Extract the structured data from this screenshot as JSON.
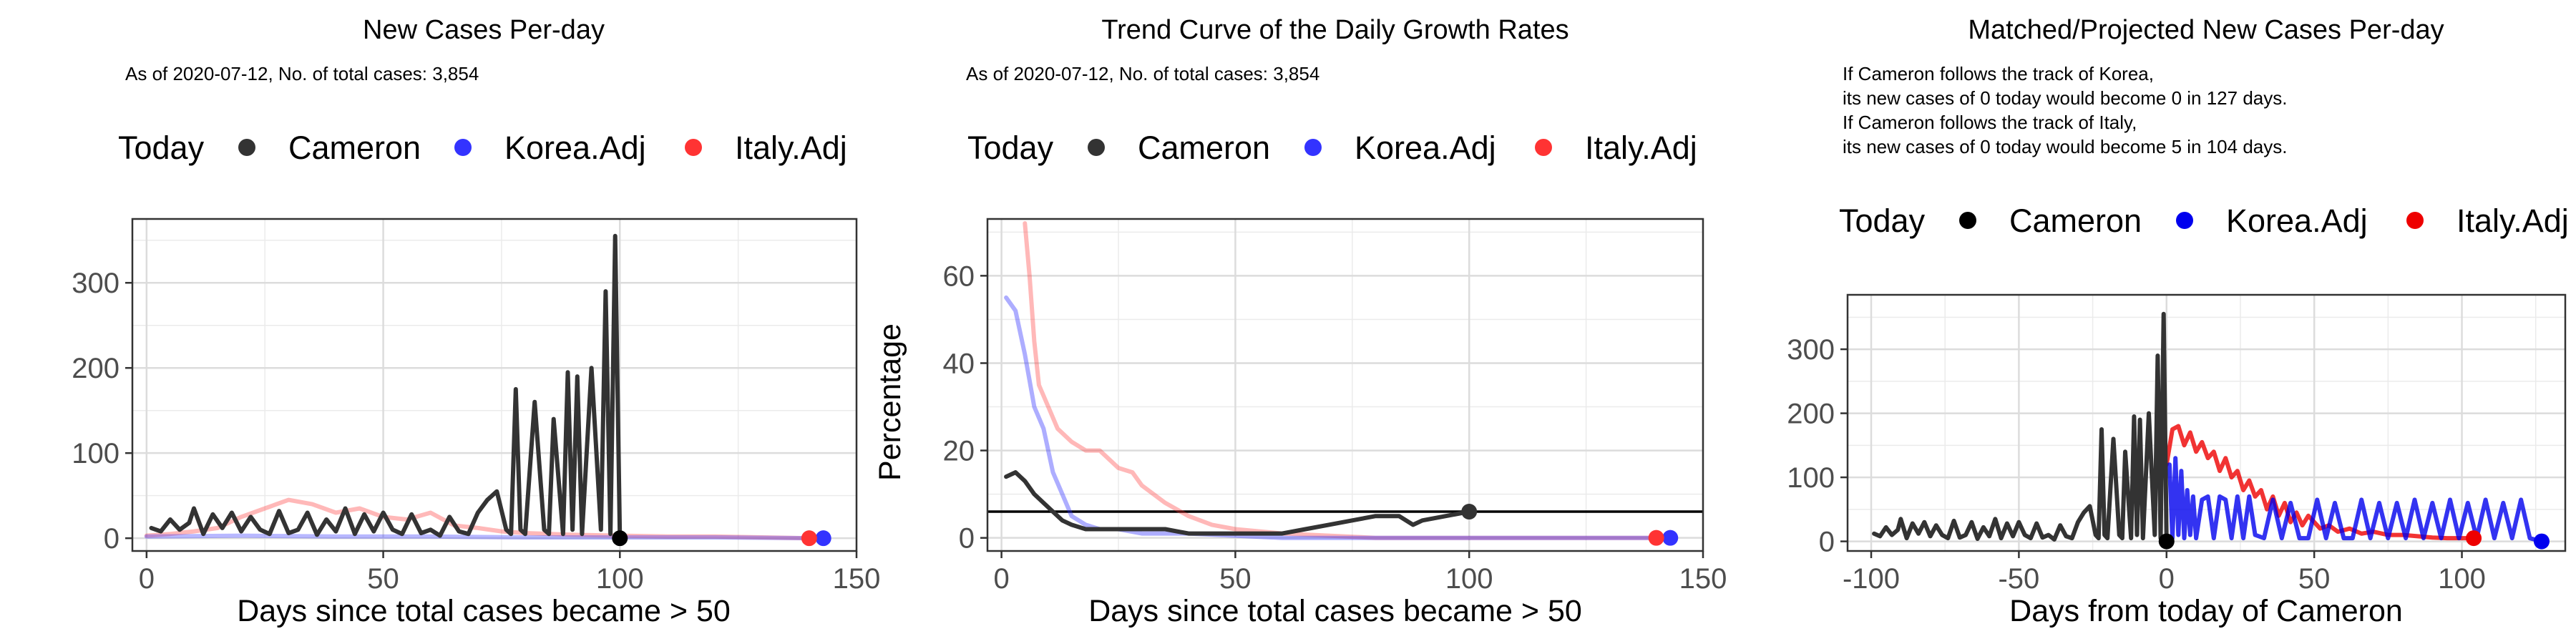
{
  "colors": {
    "Cameron": "#333333",
    "Korea.Adj": "#3333ff",
    "Italy.Adj": "#ff3333",
    "today_marker_black": "#000000",
    "projected_korea": "#0000ee",
    "projected_italy": "#ee0000"
  },
  "legend": {
    "title": "Today",
    "items": [
      "Cameron",
      "Korea.Adj",
      "Italy.Adj"
    ]
  },
  "panels": [
    {
      "title": "New Cases Per-day",
      "subtitle_lines": [
        "As of 2020-07-12, No. of total cases: 3,854"
      ]
    },
    {
      "title": "Trend Curve of the Daily Growth Rates",
      "subtitle_lines": [
        "As of 2020-07-12, No. of total cases: 3,854"
      ]
    },
    {
      "title": "Matched/Projected New Cases Per-day",
      "subtitle_lines": [
        "If Cameron follows the track of Korea,",
        "its new cases of 0 today would become 0 in 127 days.",
        "If Cameron follows the track of Italy,",
        "its new cases of 0 today would become 5 in 104 days."
      ]
    }
  ],
  "chart_data": [
    {
      "type": "line",
      "title": "New Cases Per-day",
      "xlabel": "Days since total cases became > 50",
      "ylabel": "",
      "xlim": [
        -3,
        150
      ],
      "ylim": [
        -15,
        375
      ],
      "xticks": [
        0,
        50,
        100,
        150
      ],
      "yticks": [
        0,
        100,
        200,
        300
      ],
      "grid": true,
      "legend_position": "top",
      "series": [
        {
          "name": "Cameron",
          "x": [
            1,
            3,
            5,
            7,
            9,
            10,
            12,
            14,
            16,
            18,
            20,
            22,
            24,
            26,
            28,
            30,
            32,
            34,
            36,
            38,
            40,
            42,
            44,
            46,
            48,
            50,
            52,
            54,
            56,
            58,
            60,
            62,
            64,
            66,
            68,
            70,
            72,
            74,
            76,
            77,
            78,
            79,
            80,
            82,
            84,
            85,
            86,
            88,
            89,
            90,
            91,
            92,
            94,
            96,
            97,
            98,
            99,
            100
          ],
          "y": [
            12,
            8,
            22,
            10,
            18,
            35,
            5,
            28,
            12,
            30,
            8,
            25,
            10,
            5,
            32,
            6,
            10,
            30,
            4,
            22,
            8,
            35,
            5,
            28,
            8,
            30,
            10,
            5,
            28,
            6,
            10,
            3,
            25,
            8,
            5,
            30,
            45,
            55,
            10,
            5,
            175,
            10,
            5,
            160,
            10,
            5,
            140,
            5,
            195,
            10,
            190,
            5,
            200,
            10,
            290,
            5,
            355,
            0
          ]
        },
        {
          "name": "Korea.Adj",
          "x": [
            0,
            20,
            40,
            60,
            80,
            100,
            120,
            142
          ],
          "y": [
            2,
            3,
            2,
            2,
            1,
            1,
            1,
            0
          ]
        },
        {
          "name": "Italy.Adj",
          "x": [
            0,
            5,
            10,
            15,
            20,
            25,
            30,
            35,
            40,
            45,
            50,
            55,
            60,
            65,
            70,
            75,
            80,
            90,
            100,
            110,
            120,
            130,
            140
          ],
          "y": [
            3,
            5,
            8,
            12,
            25,
            35,
            45,
            40,
            30,
            35,
            25,
            22,
            30,
            15,
            12,
            8,
            6,
            4,
            3,
            2,
            2,
            1,
            0
          ]
        }
      ],
      "today_points": [
        {
          "name": "Cameron",
          "x": 100,
          "y": 0
        },
        {
          "name": "Korea.Adj",
          "x": 143,
          "y": 0
        },
        {
          "name": "Italy.Adj",
          "x": 140,
          "y": 0
        }
      ]
    },
    {
      "type": "line",
      "title": "Trend Curve of the Daily Growth Rates",
      "xlabel": "Days since total cases became > 50",
      "ylabel": "Percentage",
      "xlim": [
        -3,
        150
      ],
      "ylim": [
        -3,
        73
      ],
      "xticks": [
        0,
        50,
        100,
        150
      ],
      "yticks": [
        0,
        20,
        40,
        60
      ],
      "grid": true,
      "legend_position": "top",
      "hline": 6,
      "series": [
        {
          "name": "Cameron",
          "x": [
            1,
            3,
            5,
            7,
            9,
            11,
            13,
            15,
            18,
            21,
            25,
            30,
            35,
            40,
            45,
            50,
            55,
            60,
            65,
            70,
            75,
            80,
            85,
            88,
            90,
            95,
            100
          ],
          "y": [
            14,
            15,
            13,
            10,
            8,
            6,
            4,
            3,
            2,
            2,
            2,
            2,
            2,
            1,
            1,
            1,
            1,
            1,
            2,
            3,
            4,
            5,
            5,
            3,
            4,
            5,
            6
          ]
        },
        {
          "name": "Korea.Adj",
          "x": [
            1,
            3,
            5,
            7,
            9,
            11,
            13,
            15,
            18,
            21,
            25,
            30,
            40,
            60,
            80,
            100,
            120,
            143
          ],
          "y": [
            55,
            52,
            42,
            30,
            25,
            15,
            10,
            5,
            3,
            2,
            2,
            1,
            1,
            0,
            0,
            0,
            0,
            0
          ]
        },
        {
          "name": "Italy.Adj",
          "x": [
            5,
            6,
            7,
            8,
            10,
            12,
            15,
            18,
            21,
            25,
            28,
            30,
            35,
            40,
            45,
            50,
            60,
            80,
            100,
            120,
            140
          ],
          "y": [
            72,
            60,
            45,
            35,
            30,
            25,
            22,
            20,
            20,
            16,
            15,
            12,
            8,
            5,
            3,
            2,
            1,
            0,
            0,
            0,
            0
          ]
        }
      ],
      "today_points": [
        {
          "name": "Cameron",
          "x": 100,
          "y": 6
        },
        {
          "name": "Korea.Adj",
          "x": 143,
          "y": 0
        },
        {
          "name": "Italy.Adj",
          "x": 140,
          "y": 0
        }
      ]
    },
    {
      "type": "line",
      "title": "Matched/Projected New Cases Per-day",
      "xlabel": "Days from today of Cameron",
      "ylabel": "",
      "xlim": [
        -108,
        135
      ],
      "ylim": [
        -15,
        385
      ],
      "xticks": [
        -100,
        -50,
        0,
        50,
        100
      ],
      "yticks": [
        0,
        100,
        200,
        300
      ],
      "grid": true,
      "legend_position": "top",
      "series": [
        {
          "name": "Cameron",
          "x": [
            -99,
            -97,
            -95,
            -93,
            -91,
            -90,
            -88,
            -86,
            -84,
            -82,
            -80,
            -78,
            -76,
            -74,
            -72,
            -70,
            -68,
            -66,
            -64,
            -62,
            -60,
            -58,
            -56,
            -54,
            -52,
            -50,
            -48,
            -46,
            -44,
            -42,
            -40,
            -38,
            -36,
            -34,
            -32,
            -30,
            -28,
            -26,
            -24,
            -23,
            -22,
            -21,
            -20,
            -18,
            -16,
            -15,
            -14,
            -12,
            -11,
            -10,
            -9,
            -8,
            -6,
            -4,
            -3,
            -2,
            -1,
            0
          ],
          "y": [
            12,
            8,
            22,
            10,
            18,
            35,
            5,
            28,
            12,
            30,
            8,
            25,
            10,
            5,
            32,
            6,
            10,
            30,
            4,
            22,
            8,
            35,
            5,
            28,
            8,
            30,
            10,
            5,
            28,
            6,
            10,
            3,
            25,
            8,
            5,
            30,
            45,
            55,
            10,
            5,
            175,
            10,
            5,
            160,
            10,
            5,
            140,
            5,
            195,
            10,
            190,
            5,
            200,
            10,
            290,
            5,
            355,
            0
          ]
        },
        {
          "name": "Korea.Adj",
          "x": [
            1,
            2,
            3,
            4,
            5,
            6,
            7,
            8,
            9,
            10,
            12,
            14,
            16,
            18,
            20,
            22,
            24,
            26,
            28,
            30,
            33,
            36,
            39,
            42,
            45,
            48,
            51,
            54,
            57,
            60,
            63,
            66,
            69,
            72,
            75,
            78,
            81,
            84,
            87,
            90,
            93,
            96,
            99,
            102,
            105,
            108,
            111,
            114,
            117,
            120,
            123,
            127
          ],
          "y": [
            120,
            5,
            130,
            10,
            110,
            5,
            80,
            10,
            70,
            5,
            65,
            70,
            5,
            70,
            65,
            5,
            70,
            5,
            70,
            10,
            5,
            65,
            5,
            60,
            5,
            5,
            65,
            5,
            60,
            5,
            5,
            65,
            5,
            60,
            5,
            60,
            5,
            65,
            5,
            60,
            5,
            65,
            5,
            60,
            5,
            65,
            5,
            60,
            5,
            65,
            5,
            0
          ]
        },
        {
          "name": "Italy.Adj",
          "x": [
            0,
            2,
            4,
            6,
            8,
            10,
            12,
            14,
            16,
            18,
            20,
            22,
            24,
            26,
            28,
            30,
            32,
            34,
            36,
            38,
            40,
            42,
            44,
            46,
            48,
            50,
            52,
            55,
            58,
            62,
            66,
            70,
            75,
            80,
            85,
            90,
            95,
            100,
            104
          ],
          "y": [
            120,
            175,
            180,
            150,
            170,
            140,
            155,
            130,
            140,
            110,
            130,
            100,
            110,
            80,
            95,
            70,
            80,
            50,
            70,
            40,
            60,
            30,
            45,
            25,
            40,
            30,
            20,
            25,
            15,
            20,
            12,
            15,
            10,
            10,
            8,
            6,
            5,
            5,
            5
          ]
        }
      ],
      "today_points": [
        {
          "name": "Cameron",
          "x": 0,
          "y": 0
        },
        {
          "name": "Korea.Adj",
          "x": 127,
          "y": 0
        },
        {
          "name": "Italy.Adj",
          "x": 104,
          "y": 5
        }
      ]
    }
  ]
}
